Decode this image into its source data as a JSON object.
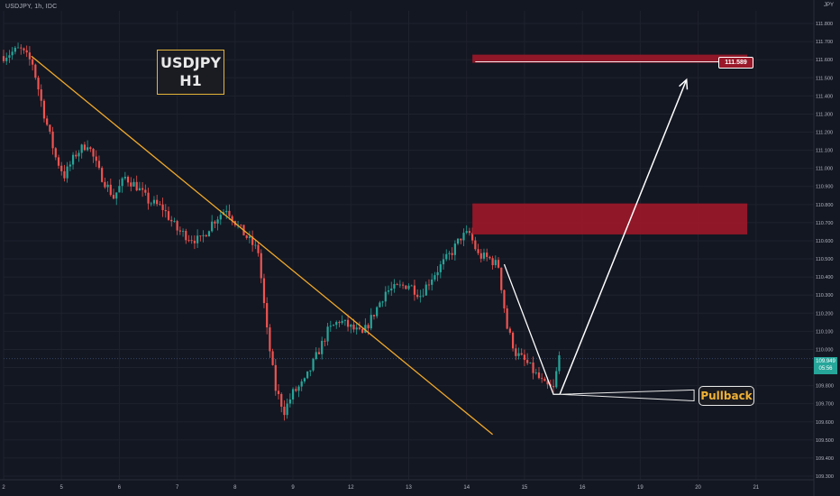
{
  "header": {
    "symbol": "USDJPY, 1h, IDC",
    "currency": "JPY"
  },
  "annotations": {
    "title_line1": "USDJPY",
    "title_line2": "H1",
    "target_label": "111.589",
    "pullback_label": "Pullback",
    "current_price": "109.949",
    "countdown": "05:56"
  },
  "colors": {
    "background": "#131722",
    "up": "#26a69a",
    "down": "#ef5350",
    "trendline": "#f0a92a",
    "zone": "#9a1829",
    "arrow": "#ffffff",
    "grid": "#1e222d"
  },
  "chart_data": {
    "type": "candlestick",
    "y_axis": {
      "ticks": [
        "111.800",
        "111.700",
        "111.600",
        "111.500",
        "111.400",
        "111.300",
        "111.200",
        "111.100",
        "111.000",
        "110.900",
        "110.800",
        "110.700",
        "110.600",
        "110.500",
        "110.400",
        "110.300",
        "110.200",
        "110.100",
        "110.000",
        "109.900",
        "109.800",
        "109.700",
        "109.600",
        "109.500",
        "109.400",
        "109.300"
      ],
      "range": [
        109.28,
        111.87
      ]
    },
    "x_axis": {
      "ticks": [
        "2",
        "5",
        "6",
        "7",
        "8",
        "9",
        "12",
        "13",
        "14",
        "15",
        "16",
        "19",
        "20",
        "21"
      ],
      "range": [
        0,
        14
      ]
    },
    "price_path": [
      [
        0.0,
        111.62
      ],
      [
        0.28,
        111.66
      ],
      [
        0.5,
        111.58
      ],
      [
        0.7,
        111.3
      ],
      [
        0.9,
        111.06
      ],
      [
        1.05,
        110.96
      ],
      [
        1.25,
        111.08
      ],
      [
        1.45,
        111.14
      ],
      [
        1.65,
        110.98
      ],
      [
        1.9,
        110.84
      ],
      [
        2.1,
        110.95
      ],
      [
        2.3,
        110.9
      ],
      [
        2.5,
        110.82
      ],
      [
        2.75,
        110.78
      ],
      [
        3.0,
        110.66
      ],
      [
        3.2,
        110.62
      ],
      [
        3.4,
        110.6
      ],
      [
        3.6,
        110.7
      ],
      [
        3.85,
        110.78
      ],
      [
        4.05,
        110.68
      ],
      [
        4.25,
        110.6
      ],
      [
        4.4,
        110.54
      ],
      [
        4.55,
        110.1
      ],
      [
        4.7,
        109.78
      ],
      [
        4.85,
        109.66
      ],
      [
        5.0,
        109.76
      ],
      [
        5.2,
        109.82
      ],
      [
        5.4,
        109.96
      ],
      [
        5.6,
        110.1
      ],
      [
        5.8,
        110.16
      ],
      [
        6.0,
        110.12
      ],
      [
        6.2,
        110.08
      ],
      [
        6.4,
        110.2
      ],
      [
        6.6,
        110.32
      ],
      [
        6.8,
        110.34
      ],
      [
        7.0,
        110.36
      ],
      [
        7.2,
        110.3
      ],
      [
        7.4,
        110.4
      ],
      [
        7.6,
        110.48
      ],
      [
        7.75,
        110.54
      ],
      [
        7.9,
        110.62
      ],
      [
        8.05,
        110.64
      ],
      [
        8.2,
        110.52
      ],
      [
        8.4,
        110.5
      ],
      [
        8.55,
        110.46
      ],
      [
        8.7,
        110.12
      ],
      [
        8.85,
        109.98
      ],
      [
        9.05,
        109.92
      ],
      [
        9.2,
        109.86
      ],
      [
        9.35,
        109.8
      ],
      [
        9.5,
        109.78
      ],
      [
        9.6,
        109.96
      ]
    ],
    "volatility": 0.035,
    "candle_spacing": 0.05,
    "trendline": [
      [
        0.48,
        111.62
      ],
      [
        8.45,
        109.53
      ]
    ],
    "resistance_zone_upper": {
      "price_top": 111.628,
      "price_bottom": 111.583,
      "x_start": 8.1,
      "x_end": 12.85
    },
    "resistance_zone_lower": {
      "price_top": 110.806,
      "price_bottom": 110.635,
      "x_start": 8.1,
      "x_end": 12.85
    },
    "target_line": {
      "price": 111.589,
      "x_start": 8.15,
      "x_end": 12.85
    },
    "pullback_path": [
      [
        8.65,
        110.47
      ],
      [
        9.5,
        109.752
      ],
      [
        9.61,
        109.752
      ]
    ],
    "arrow": {
      "from": [
        9.61,
        109.752
      ],
      "to": [
        11.8,
        111.49
      ]
    },
    "pullback_pointer": {
      "from": [
        9.61,
        109.752
      ],
      "to_top": [
        11.93,
        109.776
      ],
      "to_bottom": [
        11.93,
        109.716
      ]
    },
    "current_price": 109.949
  }
}
